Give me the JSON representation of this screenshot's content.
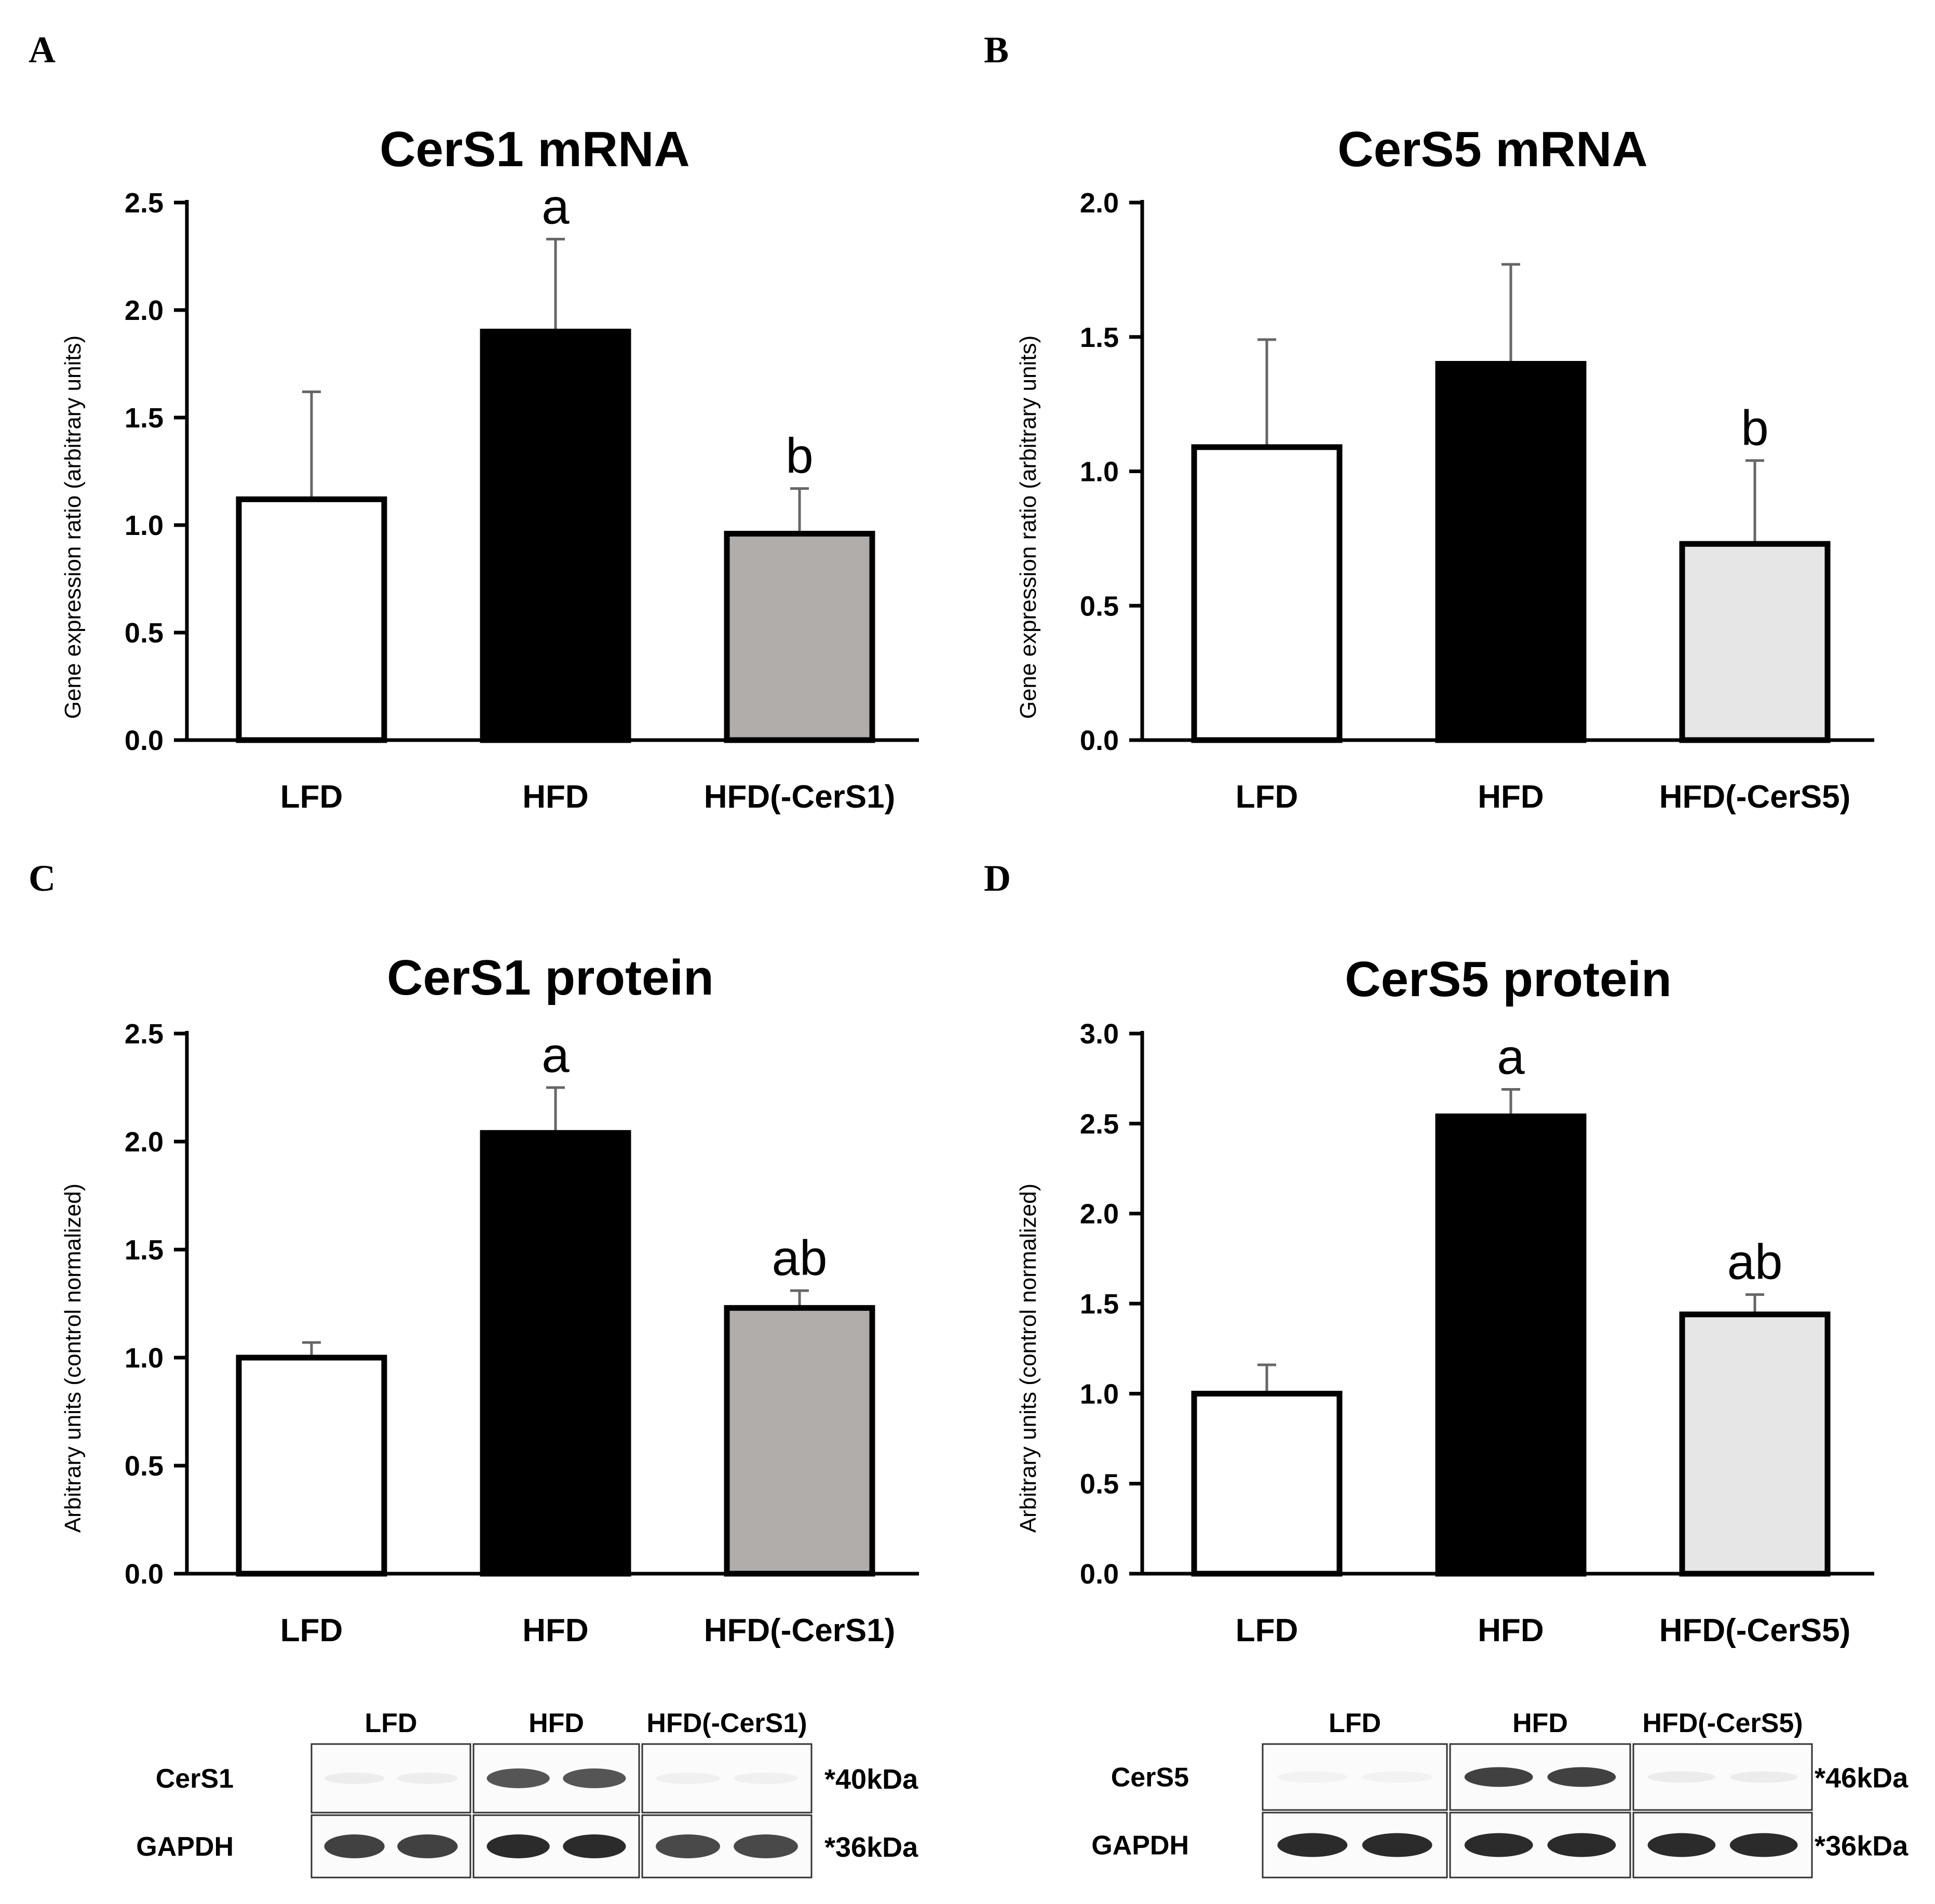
{
  "panels": {
    "A": "A",
    "B": "B",
    "C": "C",
    "D": "D"
  },
  "colors": {
    "white_bar": "#ffffff",
    "black_bar": "#000000",
    "gray_bar": "#b1adab",
    "light_gray_bar": "#e6e6e6",
    "axis": "#000000",
    "error_bar": "#666666"
  },
  "chart_data": [
    {
      "id": "A",
      "type": "bar",
      "title": "CerS1 mRNA",
      "ylabel": "Gene expression ratio (arbitrary units)",
      "xlabel": "",
      "categories": [
        "LFD",
        "HFD",
        "HFD(-CerS1)"
      ],
      "values": [
        1.12,
        1.9,
        0.96
      ],
      "errors": [
        0.5,
        0.43,
        0.21
      ],
      "significance": [
        "",
        "a",
        "b"
      ],
      "bar_colors": [
        "#ffffff",
        "#000000",
        "#b1adab"
      ],
      "ylim": [
        0,
        2.5
      ],
      "yticks": [
        "0.0",
        "0.5",
        "1.0",
        "1.5",
        "2.0",
        "2.5"
      ],
      "grid": false
    },
    {
      "id": "B",
      "type": "bar",
      "title": "CerS5 mRNA",
      "ylabel": "Gene expression ratio (arbitrary units)",
      "xlabel": "",
      "categories": [
        "LFD",
        "HFD",
        "HFD(-CerS5)"
      ],
      "values": [
        1.09,
        1.4,
        0.73
      ],
      "errors": [
        0.4,
        0.37,
        0.31
      ],
      "significance": [
        "",
        "",
        "b"
      ],
      "bar_colors": [
        "#ffffff",
        "#000000",
        "#e6e6e6"
      ],
      "ylim": [
        0,
        2.0
      ],
      "yticks": [
        "0.0",
        "0.5",
        "1.0",
        "1.5",
        "2.0"
      ],
      "grid": false
    },
    {
      "id": "C",
      "type": "bar",
      "title": "CerS1 protein",
      "ylabel": "Arbitrary units (control normalized)",
      "xlabel": "",
      "categories": [
        "LFD",
        "HFD",
        "HFD(-CerS1)"
      ],
      "values": [
        1.0,
        2.04,
        1.23
      ],
      "errors": [
        0.07,
        0.21,
        0.08
      ],
      "significance": [
        "",
        "a",
        "ab"
      ],
      "bar_colors": [
        "#ffffff",
        "#000000",
        "#b1adab"
      ],
      "ylim": [
        0,
        2.5
      ],
      "yticks": [
        "0.0",
        "0.5",
        "1.0",
        "1.5",
        "2.0",
        "2.5"
      ],
      "grid": false
    },
    {
      "id": "D",
      "type": "bar",
      "title": "CerS5 protein",
      "ylabel": "Arbitrary units (control normalized)",
      "xlabel": "",
      "categories": [
        "LFD",
        "HFD",
        "HFD(-CerS5)"
      ],
      "values": [
        1.0,
        2.54,
        1.44
      ],
      "errors": [
        0.16,
        0.15,
        0.11
      ],
      "significance": [
        "",
        "a",
        "ab"
      ],
      "bar_colors": [
        "#ffffff",
        "#000000",
        "#e6e6e6"
      ],
      "ylim": [
        0,
        3.0
      ],
      "yticks": [
        "0.0",
        "0.5",
        "1.0",
        "1.5",
        "2.0",
        "2.5",
        "3.0"
      ],
      "grid": false
    }
  ],
  "blots": [
    {
      "id": "C",
      "lanes": [
        "LFD",
        "HFD",
        "HFD(-CerS1)"
      ],
      "rows": [
        {
          "label": "CerS1",
          "kda": "*40kDa",
          "intensity": [
            0.18,
            0.85,
            0.15
          ]
        },
        {
          "label": "GAPDH",
          "kda": "*36kDa",
          "intensity": [
            0.9,
            0.95,
            0.88
          ]
        }
      ]
    },
    {
      "id": "D",
      "lanes": [
        "LFD",
        "HFD",
        "HFD(-CerS5)"
      ],
      "rows": [
        {
          "label": "CerS5",
          "kda": "*46kDa",
          "intensity": [
            0.12,
            0.9,
            0.2
          ]
        },
        {
          "label": "GAPDH",
          "kda": "*36kDa",
          "intensity": [
            0.95,
            0.95,
            0.95
          ]
        }
      ]
    }
  ]
}
